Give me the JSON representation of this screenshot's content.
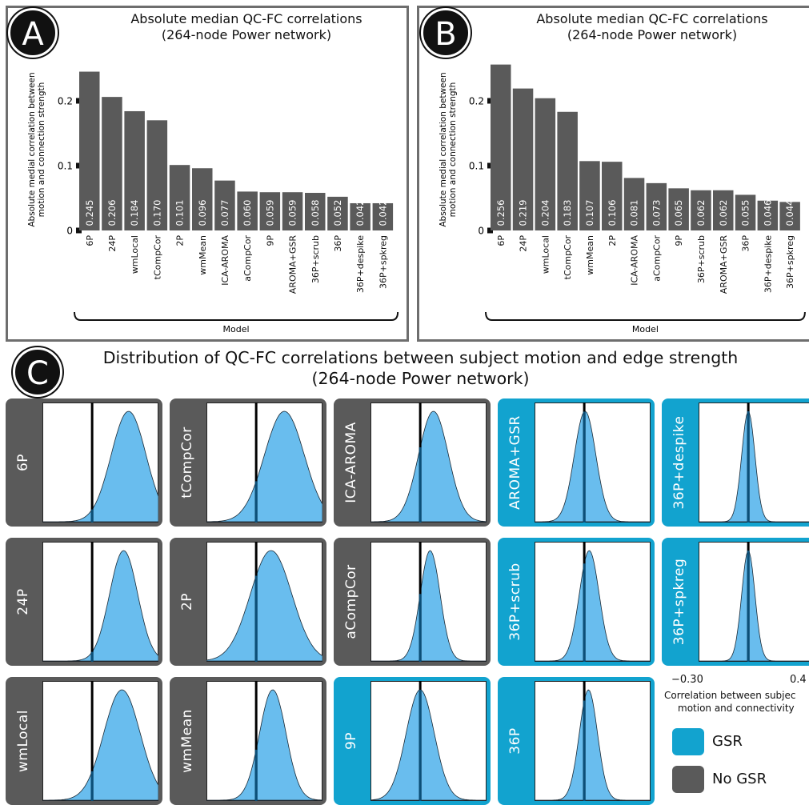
{
  "panels": {
    "A": {
      "badge": "A",
      "title1": "Absolute median QC-FC correlations",
      "title2": "(264-node Power network)",
      "ylabel1": "Absolute medial correlation between",
      "ylabel2": "motion and connection strength",
      "xlabel": "Model"
    },
    "B": {
      "badge": "B",
      "title1": "Absolute median QC-FC correlations",
      "title2": "(264-node Power network)",
      "ylabel1": "Absolute medial correlation between",
      "ylabel2": "motion and connection strength",
      "xlabel": "Model"
    },
    "C": {
      "badge": "C",
      "title1": "Distribution of QC-FC correlations between subject motion and edge strength",
      "title2": "(264-node Power network)",
      "tick_min": "−0.30",
      "tick_max": "0.4",
      "axis_label1": "Correlation between subjec",
      "axis_label2": "motion and connectivity",
      "legend_gsr": "GSR",
      "legend_nogsr": "No GSR"
    }
  },
  "colors": {
    "bar": "#5a5a5a",
    "gsr": "#12a3cf",
    "nogsr": "#5a5a5a",
    "density_fill": "#69bdee",
    "median_line": "#0b4f78"
  },
  "chart_data": [
    {
      "type": "bar",
      "title": "Absolute median QC-FC correlations (264-node Power network)",
      "xlabel": "Model",
      "ylabel": "Absolute medial correlation between motion and connection strength",
      "ylim": [
        0,
        0.25
      ],
      "yticks": [
        "0",
        "0.1",
        "0.2"
      ],
      "categories": [
        "6P",
        "24P",
        "wmLocal",
        "tCompCor",
        "2P",
        "wmMean",
        "ICA-AROMA",
        "aCompCor",
        "9P",
        "AROMA+GSR",
        "36P+scrub",
        "36P",
        "36P+despike",
        "36P+spkreg"
      ],
      "values": [
        0.245,
        0.206,
        0.184,
        0.17,
        0.101,
        0.096,
        0.077,
        0.06,
        0.059,
        0.059,
        0.058,
        0.052,
        0.042,
        0.042
      ],
      "labels": [
        "0.245",
        "0.206",
        "0.184",
        "0.170",
        "0.101",
        "0.096",
        "0.077",
        "0.060",
        "0.059",
        "0.059",
        "0.058",
        "0.052",
        "0.042",
        "0.042"
      ]
    },
    {
      "type": "bar",
      "title": "Absolute median QC-FC correlations (264-node Power network)",
      "xlabel": "Model",
      "ylabel": "Absolute medial correlation between motion and connection strength",
      "ylim": [
        0,
        0.26
      ],
      "yticks": [
        "0",
        "0.1",
        "0.2"
      ],
      "categories": [
        "6P",
        "24P",
        "wmLocal",
        "tCompCor",
        "wmMean",
        "2P",
        "ICA-AROMA",
        "aCompCor",
        "9P",
        "36P+scrub",
        "AROMA+GSR",
        "36P",
        "36P+despike",
        "36P+spkreg"
      ],
      "values": [
        0.256,
        0.219,
        0.204,
        0.183,
        0.107,
        0.106,
        0.081,
        0.073,
        0.065,
        0.062,
        0.062,
        0.055,
        0.046,
        0.044
      ],
      "labels": [
        "0.256",
        "0.219",
        "0.204",
        "0.183",
        "0.107",
        "0.106",
        "0.081",
        "0.073",
        "0.065",
        "0.062",
        "0.062",
        "0.055",
        "0.046",
        "0.044"
      ]
    },
    {
      "type": "area",
      "title": "Distribution of QC-FC correlations between subject motion and edge strength (264-node Power network)",
      "xlim": [
        -0.3,
        0.4
      ],
      "xlabel": "Correlation between subjec motion and connectivity",
      "legend": [
        "GSR",
        "No GSR"
      ],
      "distributions": [
        {
          "label": "6P",
          "gsr": false,
          "col": 0,
          "row": 0,
          "mean": 0.22,
          "sd": 0.105
        },
        {
          "label": "24P",
          "gsr": false,
          "col": 0,
          "row": 1,
          "mean": 0.19,
          "sd": 0.085
        },
        {
          "label": "wmLocal",
          "gsr": false,
          "col": 0,
          "row": 2,
          "mean": 0.18,
          "sd": 0.11
        },
        {
          "label": "tCompCor",
          "gsr": false,
          "col": 1,
          "row": 0,
          "mean": 0.17,
          "sd": 0.12
        },
        {
          "label": "2P",
          "gsr": false,
          "col": 1,
          "row": 1,
          "mean": 0.09,
          "sd": 0.125
        },
        {
          "label": "wmMean",
          "gsr": false,
          "col": 1,
          "row": 2,
          "mean": 0.1,
          "sd": 0.08
        },
        {
          "label": "ICA-AROMA",
          "gsr": false,
          "col": 2,
          "row": 0,
          "mean": 0.08,
          "sd": 0.09
        },
        {
          "label": "aCompCor",
          "gsr": false,
          "col": 2,
          "row": 1,
          "mean": 0.06,
          "sd": 0.06
        },
        {
          "label": "9P",
          "gsr": true,
          "col": 2,
          "row": 2,
          "mean": 0.0,
          "sd": 0.085
        },
        {
          "label": "AROMA+GSR",
          "gsr": true,
          "col": 3,
          "row": 0,
          "mean": 0.005,
          "sd": 0.065
        },
        {
          "label": "36P+scrub",
          "gsr": true,
          "col": 3,
          "row": 1,
          "mean": 0.03,
          "sd": 0.06
        },
        {
          "label": "36P",
          "gsr": true,
          "col": 3,
          "row": 2,
          "mean": 0.025,
          "sd": 0.055
        },
        {
          "label": "36P+despike",
          "gsr": true,
          "col": 4,
          "row": 0,
          "mean": 0.0,
          "sd": 0.04
        },
        {
          "label": "36P+spkreg",
          "gsr": true,
          "col": 4,
          "row": 1,
          "mean": 0.0,
          "sd": 0.04
        }
      ]
    }
  ]
}
